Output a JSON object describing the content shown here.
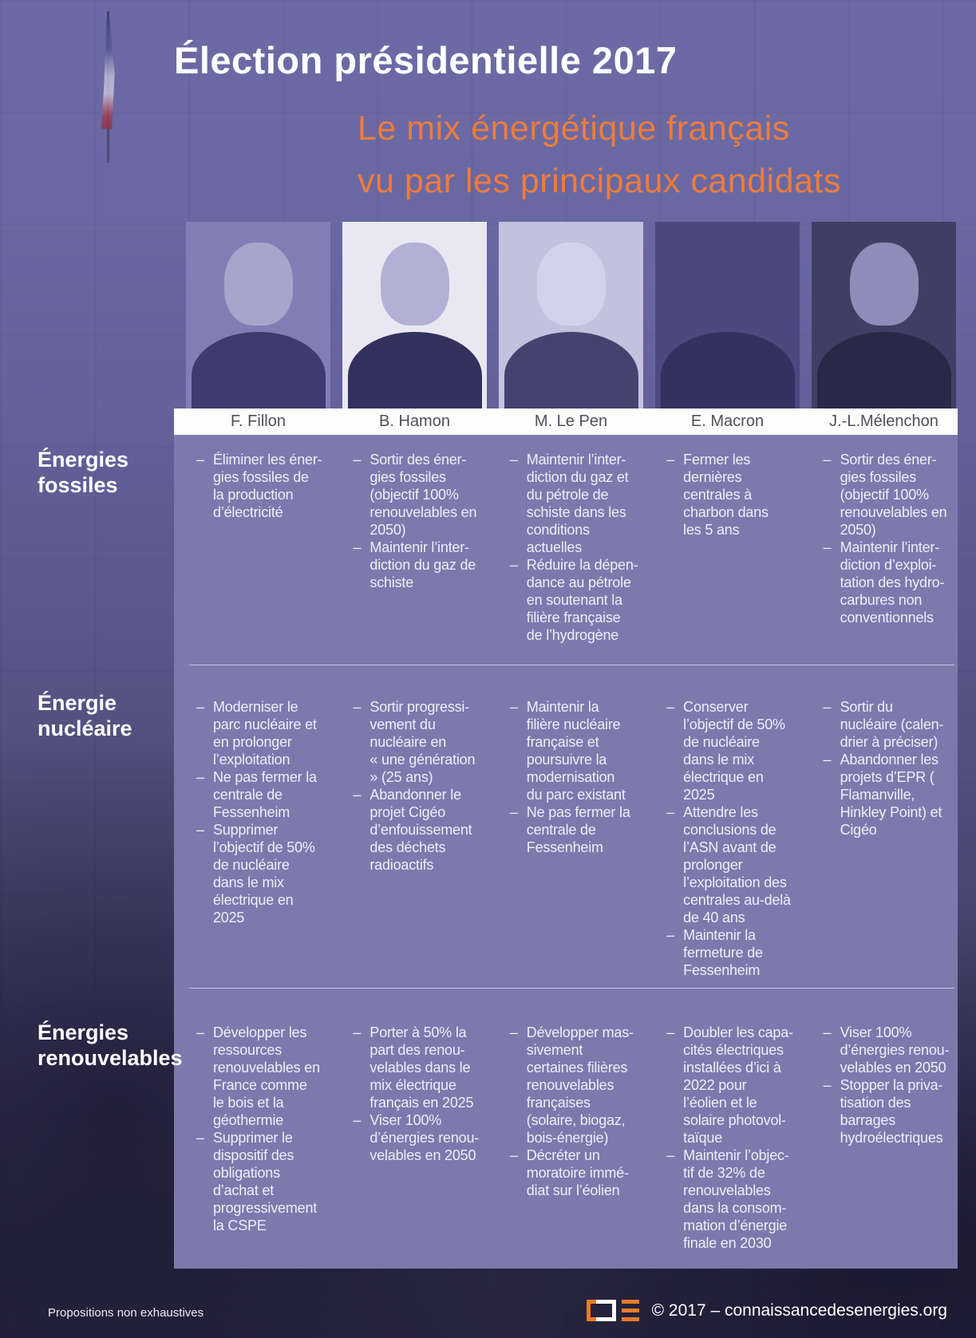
{
  "title": "Élection présidentielle 2017",
  "subtitle_line1": "Le mix énergétique français",
  "subtitle_line2": "vu par les principaux candidats",
  "bullet_marker": "–",
  "colors": {
    "accent_orange": "#ed7c3d",
    "panel_purple": "#7d79ad",
    "names_bar_bg": "#fdfdfe",
    "name_text": "#4f4f5a",
    "cell_text": "#efedf9",
    "logo_orange": "#e87b26"
  },
  "candidates": [
    {
      "name": "F. Fillon",
      "photo": {
        "bg": "#817eb5",
        "face": "#a8a5cd",
        "suit": "#3e3c6e"
      }
    },
    {
      "name": "B. Hamon",
      "photo": {
        "bg": "#e9e8f2",
        "face": "#b3b0d6",
        "suit": "#33315e"
      }
    },
    {
      "name": "M. Le Pen",
      "photo": {
        "bg": "#c3c1de",
        "face": "#d4d2ea",
        "suit": "#45426f"
      }
    },
    {
      "name": "E. Macron",
      "photo": {
        "bg": "#4c4980",
        "face": "#9visible"
      }
    },
    {
      "name": "J.-L.Mélenchon",
      "photo": {
        "bg": "#413e66",
        "face": "#8f8cba",
        "suit": "#2b2847"
      }
    }
  ],
  "rows": [
    {
      "label": "Énergies fossiles",
      "cells": [
        [
          [
            "Éliminer les éner-",
            "gies fossiles de",
            "la production",
            "d’électricité"
          ]
        ],
        [
          [
            "Sortir des éner-",
            "gies fossiles",
            "(objectif 100%",
            "renouvelables en",
            "2050)"
          ],
          [
            "Maintenir l’inter-",
            "diction du gaz de",
            "schiste"
          ]
        ],
        [
          [
            "Maintenir l’inter-",
            "diction du gaz et",
            "du pétrole de",
            "schiste dans les",
            "conditions",
            "actuelles"
          ],
          [
            "Réduire la dépen-",
            "dance au pétrole",
            "en soutenant la",
            "filière française",
            "de l’hydrogène"
          ]
        ],
        [
          [
            "Fermer les",
            "dernières",
            "centrales à",
            "charbon dans",
            "les 5 ans"
          ]
        ],
        [
          [
            "Sortir des éner-",
            "gies fossiles",
            "(objectif 100%",
            "renouvelables en",
            "2050)"
          ],
          [
            "Maintenir l’inter-",
            "diction d’exploi-",
            "tation des hydro-",
            "carbures non",
            "conventionnels"
          ]
        ]
      ]
    },
    {
      "label": "Énergie nucléaire",
      "cells": [
        [
          [
            "Moderniser le",
            "parc nucléaire et",
            "en prolonger",
            "l’exploitation"
          ],
          [
            "Ne pas fermer la",
            "centrale de",
            "Fessenheim"
          ],
          [
            "Supprimer",
            "l’objectif de 50%",
            "de nucléaire",
            "dans le mix",
            "électrique en",
            "2025"
          ]
        ],
        [
          [
            "Sortir progressi-",
            "vement du",
            "nucléaire en",
            "« une génération",
            "» (25 ans)"
          ],
          [
            "Abandonner le",
            "projet Cigéo",
            "d’enfouissement",
            "des déchets",
            "radioactifs"
          ]
        ],
        [
          [
            "Maintenir la",
            "filière nucléaire",
            "française et",
            "poursuivre la",
            "modernisation",
            "du parc existant"
          ],
          [
            "Ne pas fermer la",
            "centrale de",
            "Fessenheim"
          ]
        ],
        [
          [
            "Conserver",
            "l’objectif de 50%",
            "de nucléaire",
            "dans le mix",
            "électrique en",
            "2025"
          ],
          [
            "Attendre les",
            "conclusions de",
            "l’ASN avant de",
            "prolonger",
            "l’exploitation des",
            "centrales au-delà",
            "de 40 ans"
          ],
          [
            "Maintenir la",
            "fermeture de",
            "Fessenheim"
          ]
        ],
        [
          [
            "Sortir du",
            "nucléaire (calen-",
            "drier à préciser)"
          ],
          [
            "Abandonner les",
            "projets d’EPR (",
            "Flamanville,",
            "Hinkley Point) et",
            "Cigéo"
          ]
        ]
      ]
    },
    {
      "label": "Énergies renouvelables",
      "cells": [
        [
          [
            "Développer les",
            "ressources",
            "renouvelables en",
            "France comme",
            "le bois et la",
            "géothermie"
          ],
          [
            "Supprimer le",
            "dispositif des",
            "obligations",
            "d’achat et",
            "progressivement",
            "la CSPE"
          ]
        ],
        [
          [
            "Porter à 50% la",
            "part des renou-",
            "velables dans le",
            "mix électrique",
            "français en 2025"
          ],
          [
            "Viser 100%",
            "d’énergies renou-",
            "velables en 2050"
          ]
        ],
        [
          [
            "Développer mas-",
            "sivement",
            "certaines filières",
            "renouvelables",
            "françaises",
            "(solaire, biogaz,",
            "bois-énergie)"
          ],
          [
            "Décréter un",
            "moratoire immé-",
            "diat sur l’éolien"
          ]
        ],
        [
          [
            "Doubler les capa-",
            "cités électriques",
            "installées d’ici à",
            "2022 pour",
            "l’éolien et le",
            "solaire photovol-",
            "taïque"
          ],
          [
            "Maintenir l’objec-",
            "tif de 32% de",
            "renouvelables",
            "dans la consom-",
            "mation d’énergie",
            "finale en 2030"
          ]
        ],
        [
          [
            "Viser 100%",
            "d’énergies renou-",
            "velables en 2050"
          ],
          [
            "Stopper la priva-",
            "tisation des",
            "barrages",
            "hydroélectriques"
          ]
        ]
      ]
    }
  ],
  "footer": {
    "note": "Propositions non exhaustives",
    "credit": "© 2017 – connaissancedesenergies.org"
  }
}
